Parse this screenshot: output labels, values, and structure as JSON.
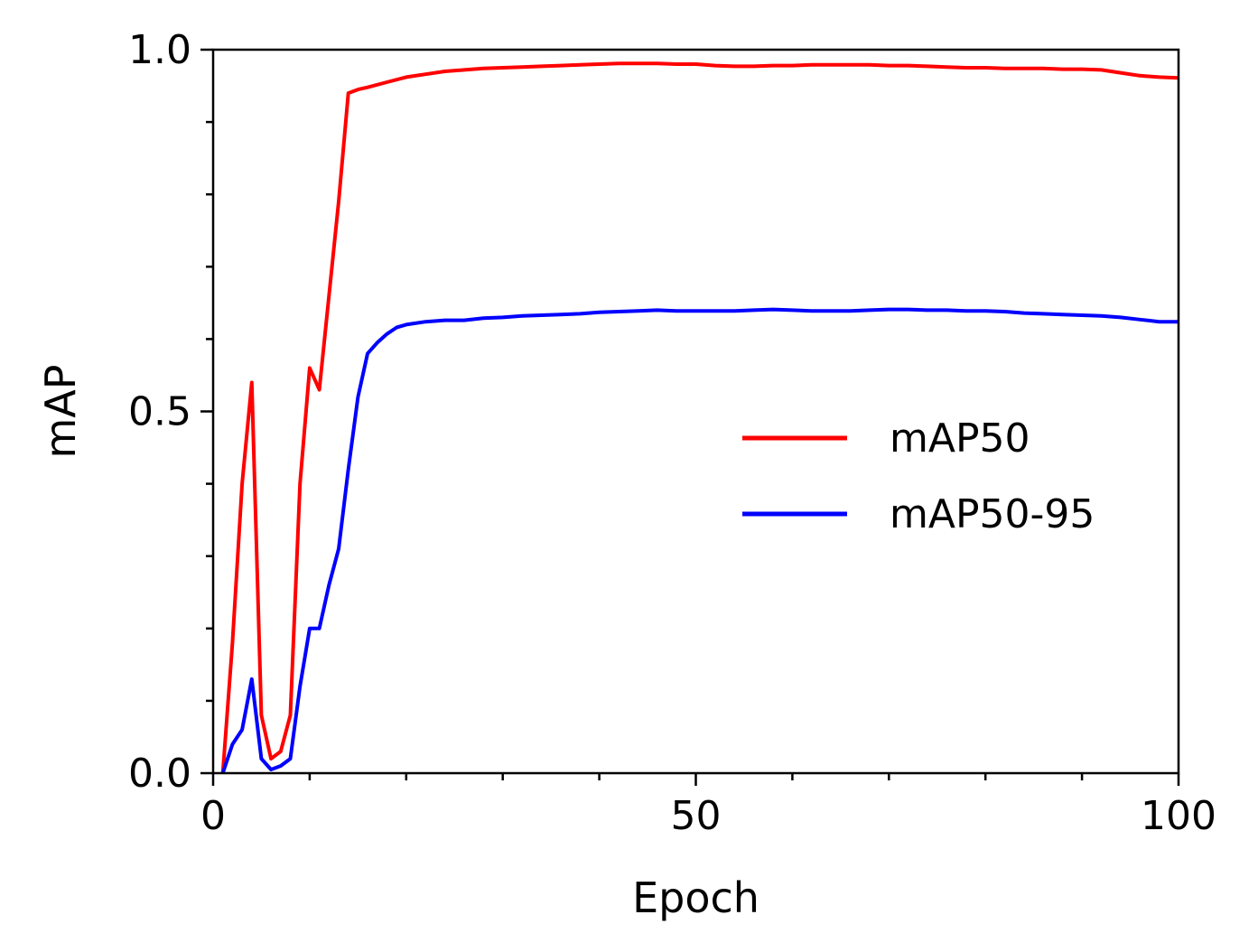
{
  "chart_data": {
    "type": "line",
    "title": "",
    "xlabel": "Epoch",
    "ylabel": "mAP",
    "xlim": [
      0,
      100
    ],
    "ylim": [
      0.0,
      1.0
    ],
    "xticks": [
      "0",
      "50",
      "100"
    ],
    "yticks": [
      "0.0",
      "0.5",
      "1.0"
    ],
    "grid": false,
    "legend_position": "center-right",
    "series": [
      {
        "name": "mAP50",
        "color": "#ff0000",
        "x": [
          1,
          2,
          3,
          4,
          5,
          6,
          7,
          8,
          9,
          10,
          11,
          12,
          13,
          14,
          15,
          16,
          18,
          20,
          22,
          24,
          26,
          28,
          30,
          32,
          34,
          36,
          38,
          40,
          42,
          44,
          46,
          48,
          50,
          52,
          54,
          56,
          58,
          60,
          62,
          64,
          66,
          68,
          70,
          72,
          74,
          76,
          78,
          80,
          82,
          84,
          86,
          88,
          90,
          92,
          94,
          96,
          98,
          100
        ],
        "y": [
          0.0,
          0.18,
          0.4,
          0.54,
          0.08,
          0.02,
          0.03,
          0.08,
          0.4,
          0.56,
          0.53,
          0.66,
          0.79,
          0.94,
          0.945,
          0.948,
          0.955,
          0.962,
          0.966,
          0.97,
          0.972,
          0.974,
          0.975,
          0.976,
          0.977,
          0.978,
          0.979,
          0.98,
          0.981,
          0.981,
          0.981,
          0.98,
          0.98,
          0.978,
          0.977,
          0.977,
          0.978,
          0.978,
          0.979,
          0.979,
          0.979,
          0.979,
          0.978,
          0.978,
          0.977,
          0.976,
          0.975,
          0.975,
          0.974,
          0.974,
          0.974,
          0.973,
          0.973,
          0.972,
          0.968,
          0.964,
          0.962,
          0.961
        ]
      },
      {
        "name": "mAP50-95",
        "color": "#0000ff",
        "x": [
          1,
          2,
          3,
          4,
          5,
          6,
          7,
          8,
          9,
          10,
          11,
          12,
          13,
          14,
          15,
          16,
          17,
          18,
          19,
          20,
          22,
          24,
          26,
          28,
          30,
          32,
          34,
          36,
          38,
          40,
          42,
          44,
          46,
          48,
          50,
          52,
          54,
          56,
          58,
          60,
          62,
          64,
          66,
          68,
          70,
          72,
          74,
          76,
          78,
          80,
          82,
          84,
          86,
          88,
          90,
          92,
          94,
          96,
          98,
          100
        ],
        "y": [
          0.0,
          0.04,
          0.06,
          0.13,
          0.02,
          0.005,
          0.01,
          0.02,
          0.12,
          0.2,
          0.2,
          0.26,
          0.31,
          0.42,
          0.52,
          0.58,
          0.595,
          0.607,
          0.616,
          0.62,
          0.624,
          0.626,
          0.626,
          0.629,
          0.63,
          0.632,
          0.633,
          0.634,
          0.635,
          0.637,
          0.638,
          0.639,
          0.64,
          0.639,
          0.639,
          0.639,
          0.639,
          0.64,
          0.641,
          0.64,
          0.639,
          0.639,
          0.639,
          0.64,
          0.641,
          0.641,
          0.64,
          0.64,
          0.639,
          0.639,
          0.638,
          0.636,
          0.635,
          0.634,
          0.633,
          0.632,
          0.63,
          0.627,
          0.624,
          0.624
        ]
      }
    ]
  }
}
